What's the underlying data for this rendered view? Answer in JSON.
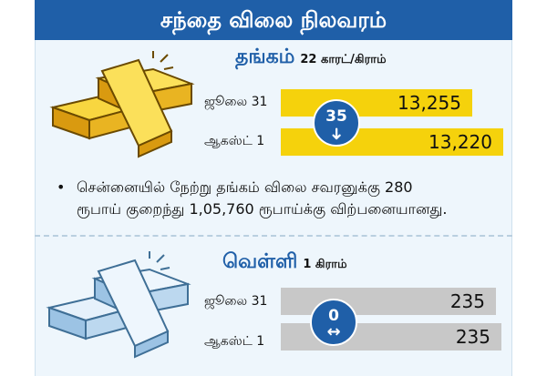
{
  "header": {
    "title": "சந்தை விலை நிலவரம்"
  },
  "gold": {
    "name": "தங்கம்",
    "unit": "22 காரட்/கிராம்",
    "rows": [
      {
        "date": "ஜூலை 31",
        "price": "13,255"
      },
      {
        "date": "ஆகஸ்ட் 1",
        "price": "13,220"
      }
    ],
    "change": "35",
    "change_icon": "arrow-down-icon",
    "bar_color": "#f5d20c"
  },
  "note": {
    "line1": "சென்னையில் நேற்று தங்கம் விலை சவரனுக்கு 280",
    "line2": "ரூபாய் குறைந்து 1,05,760 ரூபாய்க்கு விற்பனையானது."
  },
  "silver": {
    "name": "வெள்ளி",
    "unit": "1 கிராம்",
    "rows": [
      {
        "date": "ஜூலை 31",
        "price": "235"
      },
      {
        "date": "ஆகஸ்ட் 1",
        "price": "235"
      }
    ],
    "change": "0",
    "change_icon": "arrow-left-right-icon",
    "bar_color": "#c8c8c8"
  },
  "colors": {
    "accent": "#1f5fa8",
    "background": "#eef6fc"
  }
}
